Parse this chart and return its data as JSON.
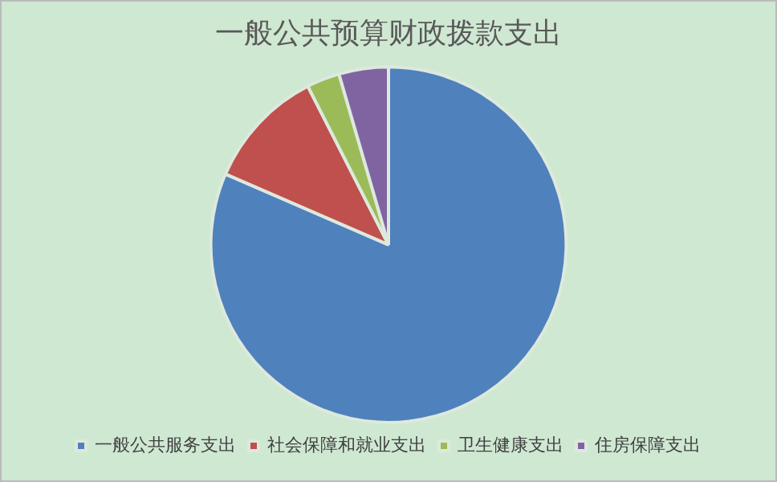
{
  "chart_data": {
    "type": "pie",
    "title": "一般公共预算财政拨款支出",
    "categories": [
      "一般公共服务支出",
      "社会保障和就业支出",
      "卫生健康支出",
      "住房保障支出"
    ],
    "values": [
      81.5,
      11,
      3,
      4.5
    ],
    "colors": [
      "#4f81bd",
      "#c0504d",
      "#9bbb59",
      "#8064a2"
    ],
    "legend": "bottom"
  }
}
